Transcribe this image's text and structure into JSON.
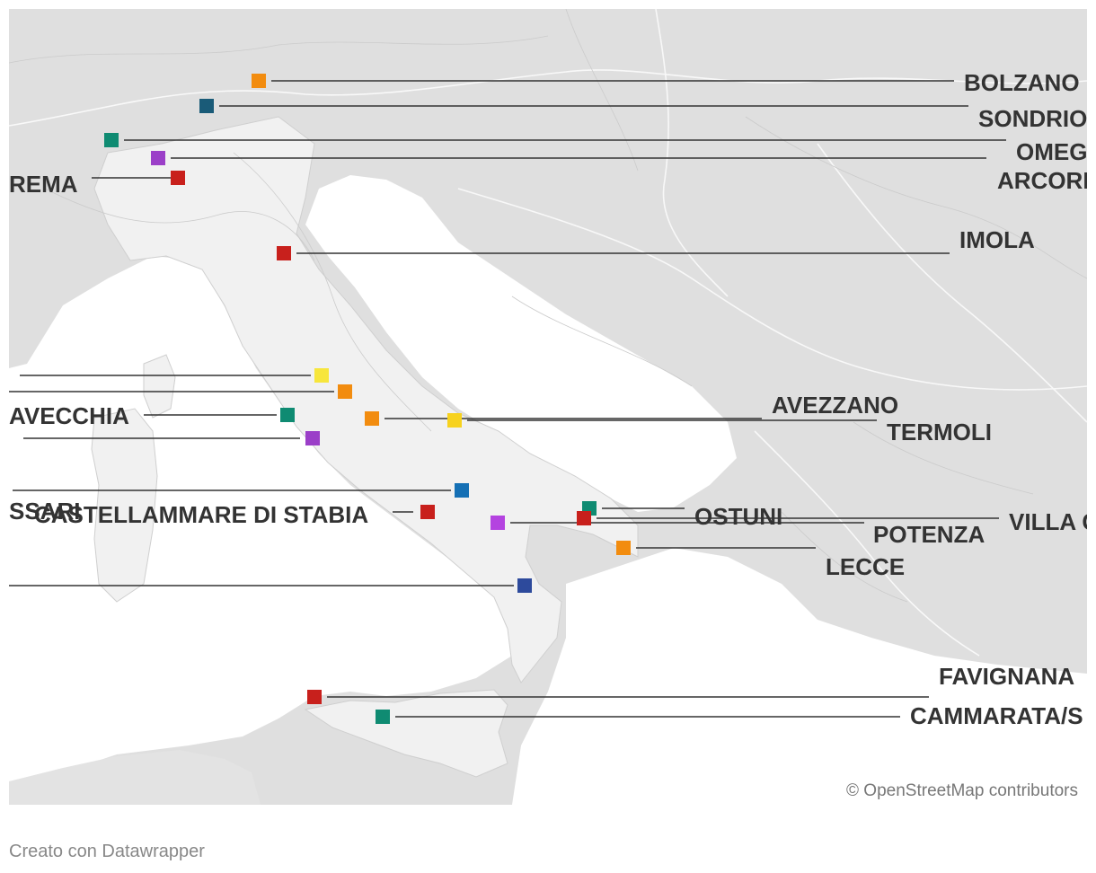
{
  "attribution": "© OpenStreetMap contributors",
  "credit": "Creato con Datawrapper",
  "colors": {
    "sea": "#ffffff",
    "land": "#dfdfdf",
    "italy": "#f1f1f1",
    "border": "#c8c8c8",
    "leader": "#333333",
    "label": "#333333"
  },
  "markers": [
    {
      "id": "bolzano",
      "label": "BOLZANO",
      "color": "#f28c0f",
      "side": "right"
    },
    {
      "id": "sondrio",
      "label": "SONDRIO",
      "color": "#1a5b78",
      "side": "right"
    },
    {
      "id": "omegna",
      "label": "OMEG",
      "color": "#0f8b72",
      "side": "right"
    },
    {
      "id": "arcore",
      "label": "ARCORE",
      "color": "#9b3fc8",
      "side": "right"
    },
    {
      "id": "crema",
      "label": "REMA",
      "color": "#c8201c",
      "side": "left"
    },
    {
      "id": "imola",
      "label": "IMOLA",
      "color": "#c8201c",
      "side": "right"
    },
    {
      "id": "left-yellow",
      "label": "",
      "color": "#f7e63c",
      "side": "left"
    },
    {
      "id": "left-orange",
      "label": "",
      "color": "#f28c0f",
      "side": "left"
    },
    {
      "id": "civitavecchia",
      "label": "AVECCHIA",
      "color": "#0f8b72",
      "side": "left"
    },
    {
      "id": "left-purple",
      "label": "",
      "color": "#9b3fc8",
      "side": "left"
    },
    {
      "id": "avezzano",
      "label": "AVEZZANO",
      "color": "#f28c0f",
      "side": "right"
    },
    {
      "id": "termoli",
      "label": "TERMOLI",
      "color": "#f7d21e",
      "side": "right"
    },
    {
      "id": "sassari",
      "label": "SSARI",
      "color": "#1570b5",
      "side": "left"
    },
    {
      "id": "castellammare",
      "label": "CASTELLAMMARE DI STABIA",
      "color": "#c8201c",
      "side": "left"
    },
    {
      "id": "potenza",
      "label": "POTENZA",
      "color": "#b443e0",
      "side": "right"
    },
    {
      "id": "ostuni",
      "label": "OSTUNI",
      "color": "#0f8b72",
      "side": "right"
    },
    {
      "id": "villa",
      "label": "VILLA C",
      "color": "#c8201c",
      "side": "right"
    },
    {
      "id": "lecce",
      "label": "LECCE",
      "color": "#f28c0f",
      "side": "right"
    },
    {
      "id": "calabria",
      "label": "",
      "color": "#2d4a9c",
      "side": "left"
    },
    {
      "id": "favignana",
      "label": "FAVIGNANA",
      "color": "#c8201c",
      "side": "right"
    },
    {
      "id": "cammarata",
      "label": "CAMMARATA/S",
      "color": "#0f8b72",
      "side": "right"
    }
  ]
}
